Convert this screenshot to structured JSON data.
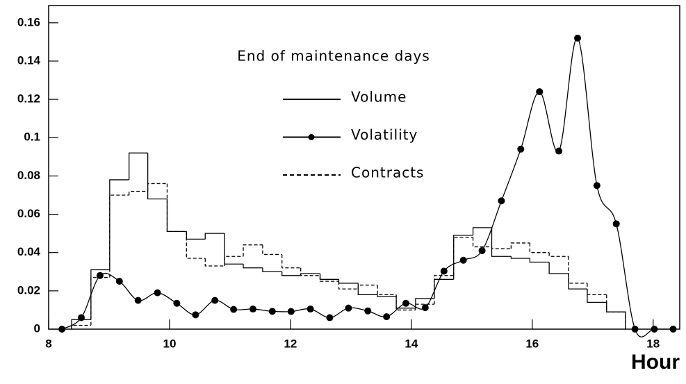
{
  "chart_data": {
    "type": "histogram",
    "annotation": "End of maintenance days",
    "xlabel": "Hour",
    "xlim": [
      8,
      18.44
    ],
    "ylim": [
      0,
      0.169
    ],
    "xticks": [
      8,
      10,
      12,
      14,
      16,
      18
    ],
    "yticks": [
      0,
      0.02,
      0.04,
      0.06,
      0.08,
      0.1,
      0.12,
      0.14,
      0.16
    ],
    "bins": [
      8.38,
      8.7,
      9.01,
      9.33,
      9.64,
      9.96,
      10.28,
      10.59,
      10.91,
      11.22,
      11.54,
      11.86,
      12.17,
      12.49,
      12.8,
      13.12,
      13.44,
      13.75,
      14.07,
      14.38,
      14.7,
      15.02,
      15.33,
      15.65,
      15.96,
      16.28,
      16.6,
      16.91,
      17.23,
      17.54
    ],
    "series": [
      {
        "name": "Volume",
        "color": "#000000",
        "dashed": false,
        "values": [
          0.005,
          0.031,
          0.078,
          0.092,
          0.068,
          0.051,
          0.047,
          0.05,
          0.034,
          0.032,
          0.03,
          0.028,
          0.029,
          0.026,
          0.024,
          0.018,
          0.017,
          0.011,
          0.016,
          0.026,
          0.049,
          0.053,
          0.038,
          0.037,
          0.035,
          0.029,
          0.021,
          0.014,
          0.009
        ]
      },
      {
        "name": "Volatility",
        "color": "#000000",
        "markers": true,
        "x": [
          8.22,
          8.54,
          8.85,
          9.17,
          9.48,
          9.8,
          10.12,
          10.43,
          10.75,
          11.06,
          11.38,
          11.7,
          12.01,
          12.33,
          12.65,
          12.96,
          13.28,
          13.59,
          13.91,
          14.23,
          14.54,
          14.86,
          15.17,
          15.49,
          15.81,
          16.12,
          16.44,
          16.75,
          17.07,
          17.39,
          17.7,
          18.02,
          18.33
        ],
        "values": [
          0,
          0.006,
          0.028,
          0.025,
          0.015,
          0.019,
          0.0135,
          0.0075,
          0.015,
          0.0103,
          0.0105,
          0.0093,
          0.0092,
          0.0105,
          0.006,
          0.011,
          0.0095,
          0.0065,
          0.0135,
          0.0112,
          0.0303,
          0.036,
          0.041,
          0.067,
          0.094,
          0.124,
          0.093,
          0.152,
          0.075,
          0.055,
          0,
          0,
          0
        ]
      },
      {
        "name": "Contracts",
        "color": "#000000",
        "dashed": true,
        "values": [
          0.002,
          0.027,
          0.07,
          0.072,
          0.076,
          0.051,
          0.037,
          0.033,
          0.038,
          0.044,
          0.039,
          0.032,
          0.028,
          0.025,
          0.021,
          0.023,
          0.018,
          0.01,
          0.013,
          0.028,
          0.048,
          0.043,
          0.042,
          0.045,
          0.04,
          0.038,
          0.024,
          0.018,
          0.009
        ]
      }
    ]
  }
}
